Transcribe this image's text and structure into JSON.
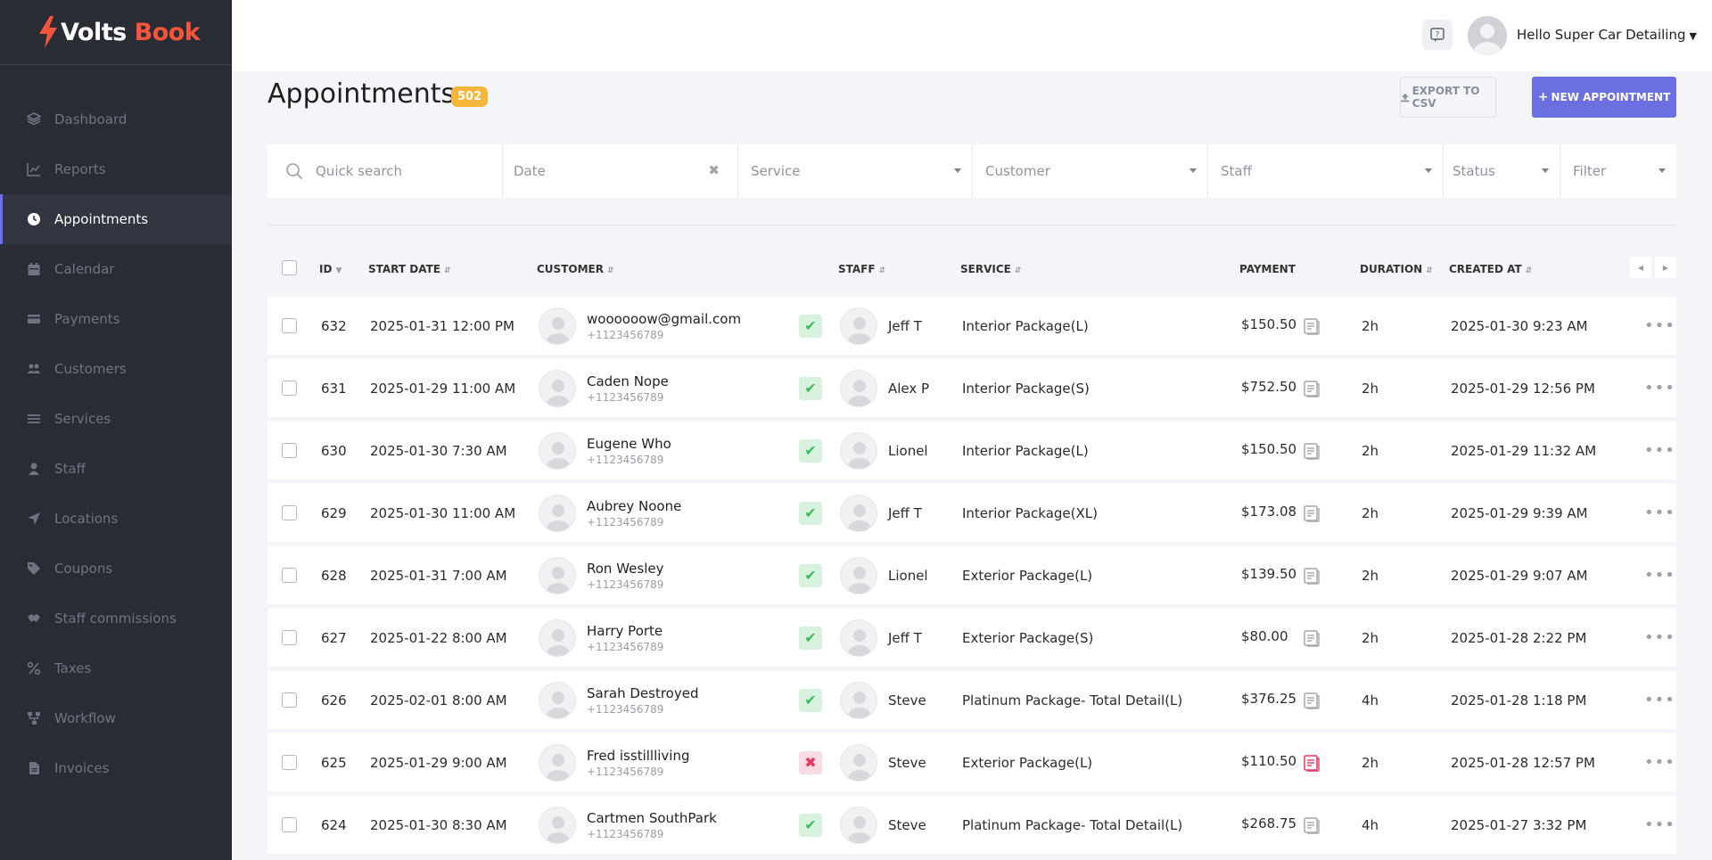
{
  "brand": {
    "name_part1": "Volts",
    "name_part2": "Book",
    "accent": "#f5553b",
    "primary": "#6c6fe0"
  },
  "sidebar": {
    "items": [
      {
        "label": "Dashboard",
        "icon": "dashboard-icon",
        "active": false
      },
      {
        "label": "Reports",
        "icon": "reports-icon",
        "active": false
      },
      {
        "label": "Appointments",
        "icon": "clock-icon",
        "active": true
      },
      {
        "label": "Calendar",
        "icon": "calendar-icon",
        "active": false
      },
      {
        "label": "Payments",
        "icon": "credit-card-icon",
        "active": false
      },
      {
        "label": "Customers",
        "icon": "users-icon",
        "active": false
      },
      {
        "label": "Services",
        "icon": "list-icon",
        "active": false
      },
      {
        "label": "Staff",
        "icon": "user-icon",
        "active": false
      },
      {
        "label": "Locations",
        "icon": "location-arrow-icon",
        "active": false
      },
      {
        "label": "Coupons",
        "icon": "tag-icon",
        "active": false
      },
      {
        "label": "Staff commissions",
        "icon": "handshake-icon",
        "active": false
      },
      {
        "label": "Taxes",
        "icon": "percent-icon",
        "active": false
      },
      {
        "label": "Workflow",
        "icon": "workflow-icon",
        "active": false
      },
      {
        "label": "Invoices",
        "icon": "file-icon",
        "active": false
      }
    ]
  },
  "topbar": {
    "help_icon": "help-chat-icon",
    "user_greeting": "Hello Super Car Detailing"
  },
  "page": {
    "title": "Appointments",
    "count": "502",
    "export_label": "EXPORT TO CSV",
    "new_label": "NEW APPOINTMENT"
  },
  "filters": {
    "search_placeholder": "Quick search",
    "date": "Date",
    "service": "Service",
    "customer": "Customer",
    "staff": "Staff",
    "status": "Status",
    "filter": "Filter"
  },
  "table": {
    "headers": {
      "id": "ID",
      "start_date": "START DATE",
      "customer": "CUSTOMER",
      "staff": "STAFF",
      "service": "SERVICE",
      "payment": "PAYMENT",
      "duration": "DURATION",
      "created_at": "CREATED AT"
    },
    "rows": [
      {
        "id": "632",
        "start": "2025-01-31 12:00 PM",
        "customer": "woooooow@gmail.com",
        "phone": "+1123456789",
        "status": "ok",
        "staff": "Jeff T",
        "service": "Interior Package(L)",
        "payment": "$150.50",
        "paid": true,
        "duration": "2h",
        "created": "2025-01-30 9:23 AM"
      },
      {
        "id": "631",
        "start": "2025-01-29 11:00 AM",
        "customer": "Caden Nope",
        "phone": "+1123456789",
        "status": "ok",
        "staff": "Alex P",
        "service": "Interior Package(S)",
        "payment": "$752.50",
        "paid": true,
        "duration": "2h",
        "created": "2025-01-29 12:56 PM"
      },
      {
        "id": "630",
        "start": "2025-01-30 7:30 AM",
        "customer": "Eugene Who",
        "phone": "+1123456789",
        "status": "ok",
        "staff": "Lionel",
        "service": "Interior Package(L)",
        "payment": "$150.50",
        "paid": true,
        "duration": "2h",
        "created": "2025-01-29 11:32 AM"
      },
      {
        "id": "629",
        "start": "2025-01-30 11:00 AM",
        "customer": "Aubrey Noone",
        "phone": "+1123456789",
        "status": "ok",
        "staff": "Jeff T",
        "service": "Interior Package(XL)",
        "payment": "$173.08",
        "paid": true,
        "duration": "2h",
        "created": "2025-01-29 9:39 AM"
      },
      {
        "id": "628",
        "start": "2025-01-31 7:00 AM",
        "customer": "Ron Wesley",
        "phone": "+1123456789",
        "status": "ok",
        "staff": "Lionel",
        "service": "Exterior Package(L)",
        "payment": "$139.50",
        "paid": true,
        "duration": "2h",
        "created": "2025-01-29 9:07 AM"
      },
      {
        "id": "627",
        "start": "2025-01-22 8:00 AM",
        "customer": "Harry Porte",
        "phone": "+1123456789",
        "status": "ok",
        "staff": "Jeff T",
        "service": "Exterior Package(S)",
        "payment": "$80.00",
        "paid": true,
        "duration": "2h",
        "created": "2025-01-28 2:22 PM"
      },
      {
        "id": "626",
        "start": "2025-02-01 8:00 AM",
        "customer": "Sarah Destroyed",
        "phone": "+1123456789",
        "status": "ok",
        "staff": "Steve",
        "service": "Platinum Package- Total Detail(L)",
        "payment": "$376.25",
        "paid": true,
        "duration": "4h",
        "created": "2025-01-28 1:18 PM"
      },
      {
        "id": "625",
        "start": "2025-01-29 9:00 AM",
        "customer": "Fred isstillliving",
        "phone": "+1123456789",
        "status": "bad",
        "staff": "Steve",
        "service": "Exterior Package(L)",
        "payment": "$110.50",
        "paid": false,
        "duration": "2h",
        "created": "2025-01-28 12:57 PM"
      },
      {
        "id": "624",
        "start": "2025-01-30 8:30 AM",
        "customer": "Cartmen SouthPark",
        "phone": "+1123456789",
        "status": "ok",
        "staff": "Steve",
        "service": "Platinum Package- Total Detail(L)",
        "payment": "$268.75",
        "paid": true,
        "duration": "4h",
        "created": "2025-01-27 3:32 PM"
      }
    ]
  }
}
